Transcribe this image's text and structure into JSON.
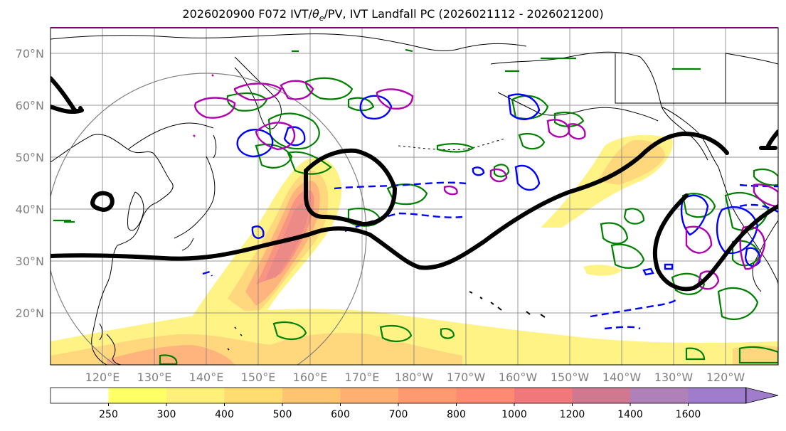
{
  "title": "2026020900 F072 IVT/θe/PV, IVT Landfall PC (2026021112 - 2026021200)",
  "title_parts": {
    "prefix": "2026020900 F072 IVT/",
    "theta": "θ",
    "sub": "e",
    "suffix": "/PV, IVT Landfall PC (2026021112 - 2026021200)"
  },
  "lat_labels": [
    "70°N",
    "60°N",
    "50°N",
    "40°N",
    "30°N",
    "20°N"
  ],
  "lon_labels": [
    "120°E",
    "130°E",
    "140°E",
    "150°E",
    "160°E",
    "170°E",
    "180°W",
    "170°W",
    "160°W",
    "150°W",
    "140°W",
    "130°W",
    "120°W"
  ],
  "colorbar": {
    "ticks": [
      "250",
      "300",
      "400",
      "500",
      "600",
      "700",
      "800",
      "1000",
      "1200",
      "1400",
      "1600"
    ],
    "colors": [
      "#ffffff",
      "#ffff66",
      "#fff07a",
      "#ffdc6f",
      "#ffc46f",
      "#ffb070",
      "#ff9a70",
      "#ff8a72",
      "#f0787a",
      "#d07890",
      "#b080b8",
      "#a07ccc"
    ]
  },
  "map": {
    "lat_range": [
      10,
      75
    ],
    "lon_range": [
      110,
      250
    ],
    "ivt_color_primary": "#ffd966",
    "pv_color": "#008000",
    "theta_pos_color": "#0000ff",
    "theta_neg_color": "#b000b0",
    "landfall_color": "#000000"
  }
}
